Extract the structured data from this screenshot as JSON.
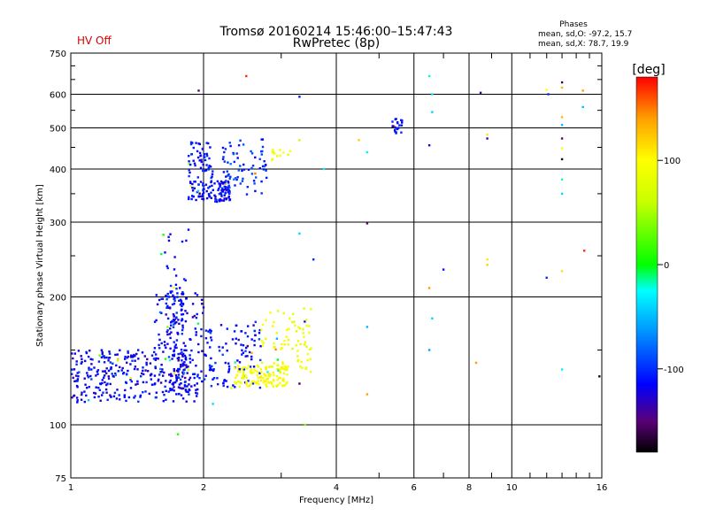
{
  "header": {
    "title_line1": "Tromsø 20160214 15:46:00–15:47:43",
    "title_line2": "RwPretec (8p)",
    "hv_status": "HV Off",
    "stats_title": "Phases",
    "stats_line1": "mean, sd,O: -97.2, 15.7",
    "stats_line2": "mean, sd,X:  78.7, 19.9"
  },
  "colors": {
    "hv_status": "#e00000",
    "grid": "#000000",
    "background": "#ffffff"
  },
  "chart_data": {
    "type": "scatter",
    "xlabel": "Frequency [MHz]",
    "ylabel": "Stationary phase Virtual Height [km]",
    "xscale": "log",
    "yscale": "log",
    "xlim": [
      1,
      16
    ],
    "ylim": [
      75,
      750
    ],
    "x_ticks": [
      1,
      2,
      4,
      6,
      8,
      10,
      16
    ],
    "x_tick_labels": [
      "1",
      "2",
      "4",
      "6",
      "8",
      "10",
      "16"
    ],
    "y_ticks": [
      75,
      100,
      200,
      300,
      400,
      500,
      600,
      750
    ],
    "y_tick_labels": [
      "75",
      "100",
      "200",
      "300",
      "400",
      "500",
      "600",
      "750"
    ],
    "grid": true,
    "colorbar": {
      "label": "[deg]",
      "range": [
        -180,
        180
      ],
      "ticks": [
        100,
        0,
        -100
      ],
      "tick_labels": [
        "100",
        "0",
        "-100"
      ],
      "colormap": [
        {
          "value": -180,
          "color": "#000000"
        },
        {
          "value": -150,
          "color": "#5a0078"
        },
        {
          "value": -115,
          "color": "#0000ff"
        },
        {
          "value": -60,
          "color": "#00a0ff"
        },
        {
          "value": -25,
          "color": "#00ffff"
        },
        {
          "value": 0,
          "color": "#00ff00"
        },
        {
          "value": 60,
          "color": "#c8ff00"
        },
        {
          "value": 100,
          "color": "#ffff00"
        },
        {
          "value": 140,
          "color": "#ffa000"
        },
        {
          "value": 180,
          "color": "#ff0000"
        }
      ]
    },
    "series": [
      {
        "clusters": [
          {
            "f": [
              1.0,
              1.95
            ],
            "h": [
              113,
              150
            ],
            "p": [
              -115,
              18
            ],
            "n": 340
          },
          {
            "f": [
              1.55,
              2.0
            ],
            "h": [
              120,
              205
            ],
            "p": [
              -115,
              18
            ],
            "n": 120
          },
          {
            "f": [
              1.65,
              1.8
            ],
            "h": [
              160,
              215
            ],
            "p": [
              -110,
              15
            ],
            "n": 55
          },
          {
            "f": [
              1.6,
              1.9
            ],
            "h": [
              195,
              290
            ],
            "p": [
              -110,
              15
            ],
            "n": 22
          },
          {
            "f": [
              2.0,
              2.7
            ],
            "h": [
              122,
              175
            ],
            "p": [
              -110,
              18
            ],
            "n": 110
          },
          {
            "f": [
              1.85,
              2.3
            ],
            "h": [
              335,
              375
            ],
            "p": [
              -115,
              15
            ],
            "n": 110
          },
          {
            "f": [
              1.85,
              2.1
            ],
            "h": [
              375,
              465
            ],
            "p": [
              -110,
              15
            ],
            "n": 55
          },
          {
            "f": [
              2.2,
              2.8
            ],
            "h": [
              345,
              470
            ],
            "p": [
              -100,
              20
            ],
            "n": 75
          },
          {
            "f": [
              2.35,
              3.1
            ],
            "h": [
              123,
              138
            ],
            "p": [
              95,
              12
            ],
            "n": 130
          },
          {
            "f": [
              2.7,
              3.55
            ],
            "h": [
              133,
              188
            ],
            "p": [
              90,
              15
            ],
            "n": 85
          },
          {
            "f": [
              2.85,
              3.15
            ],
            "h": [
              410,
              445
            ],
            "p": [
              95,
              10
            ],
            "n": 14
          },
          {
            "f": [
              5.35,
              5.65
            ],
            "h": [
              478,
              530
            ],
            "p": [
              -110,
              10
            ],
            "n": 22
          }
        ]
      },
      {
        "points": [
          {
            "x": 2.5,
            "y": 662,
            "p": 170
          },
          {
            "x": 1.95,
            "y": 612,
            "p": -150
          },
          {
            "x": 3.3,
            "y": 592,
            "p": -110
          },
          {
            "x": 3.3,
            "y": 468,
            "p": 60
          },
          {
            "x": 4.5,
            "y": 468,
            "p": 120
          },
          {
            "x": 4.7,
            "y": 438,
            "p": -30
          },
          {
            "x": 4.7,
            "y": 298,
            "p": -150
          },
          {
            "x": 4.7,
            "y": 170,
            "p": -50
          },
          {
            "x": 4.7,
            "y": 118,
            "p": 140
          },
          {
            "x": 3.55,
            "y": 245,
            "p": -100
          },
          {
            "x": 3.3,
            "y": 282,
            "p": -40
          },
          {
            "x": 3.3,
            "y": 125,
            "p": -160
          },
          {
            "x": 3.4,
            "y": 100,
            "p": 40
          },
          {
            "x": 6.5,
            "y": 662,
            "p": -20
          },
          {
            "x": 6.6,
            "y": 600,
            "p": -30
          },
          {
            "x": 6.6,
            "y": 545,
            "p": -40
          },
          {
            "x": 6.5,
            "y": 455,
            "p": -130
          },
          {
            "x": 7.0,
            "y": 232,
            "p": -110
          },
          {
            "x": 6.5,
            "y": 210,
            "p": 140
          },
          {
            "x": 6.6,
            "y": 178,
            "p": -40
          },
          {
            "x": 6.5,
            "y": 150,
            "p": -60
          },
          {
            "x": 8.5,
            "y": 605,
            "p": -140
          },
          {
            "x": 8.8,
            "y": 482,
            "p": 110
          },
          {
            "x": 8.8,
            "y": 472,
            "p": -140
          },
          {
            "x": 8.8,
            "y": 245,
            "p": 110
          },
          {
            "x": 8.8,
            "y": 238,
            "p": 120
          },
          {
            "x": 8.3,
            "y": 140,
            "p": 140
          },
          {
            "x": 12.0,
            "y": 615,
            "p": 100
          },
          {
            "x": 12.1,
            "y": 600,
            "p": -100
          },
          {
            "x": 13.0,
            "y": 640,
            "p": -160
          },
          {
            "x": 13.0,
            "y": 622,
            "p": 130
          },
          {
            "x": 13.0,
            "y": 530,
            "p": 130
          },
          {
            "x": 13.0,
            "y": 508,
            "p": -50
          },
          {
            "x": 13.0,
            "y": 472,
            "p": -150
          },
          {
            "x": 13.0,
            "y": 448,
            "p": 100
          },
          {
            "x": 13.0,
            "y": 422,
            "p": -170
          },
          {
            "x": 13.0,
            "y": 378,
            "p": -20
          },
          {
            "x": 13.0,
            "y": 350,
            "p": -40
          },
          {
            "x": 13.0,
            "y": 230,
            "p": 110
          },
          {
            "x": 13.0,
            "y": 135,
            "p": -30
          },
          {
            "x": 12.0,
            "y": 222,
            "p": -100
          },
          {
            "x": 14.5,
            "y": 612,
            "p": 140
          },
          {
            "x": 14.5,
            "y": 560,
            "p": -50
          },
          {
            "x": 14.6,
            "y": 257,
            "p": 170
          },
          {
            "x": 15.8,
            "y": 130,
            "p": -170
          },
          {
            "x": 1.75,
            "y": 95,
            "p": 10
          },
          {
            "x": 2.1,
            "y": 112,
            "p": -40
          },
          {
            "x": 3.75,
            "y": 400,
            "p": -30
          }
        ]
      }
    ]
  }
}
